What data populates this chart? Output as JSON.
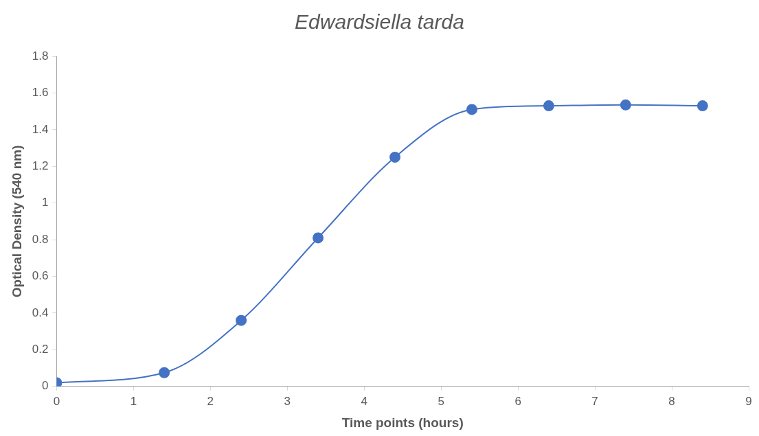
{
  "chart_data": {
    "type": "line",
    "title": "Edwardsiella tarda",
    "xlabel": "Time points (hours)",
    "ylabel": "Optical Density (540 nm)",
    "x": [
      0,
      1.4,
      2.4,
      3.4,
      4.4,
      5.4,
      6.4,
      7.4,
      8.4
    ],
    "series": [
      {
        "color": "#4472c4",
        "values": [
          0.02,
          0.075,
          0.36,
          0.81,
          1.25,
          1.51,
          1.53,
          1.535,
          1.53
        ]
      }
    ],
    "xlim": [
      0,
      9
    ],
    "xticks": [
      0,
      1,
      2,
      3,
      4,
      5,
      6,
      7,
      8,
      9
    ],
    "ylim": [
      0,
      1.8
    ],
    "yticks": [
      0,
      0.2,
      0.4,
      0.6,
      0.8,
      1,
      1.2,
      1.4,
      1.6,
      1.8
    ],
    "grid": false,
    "legend": false,
    "marker": "circle",
    "line_style": "solid"
  }
}
